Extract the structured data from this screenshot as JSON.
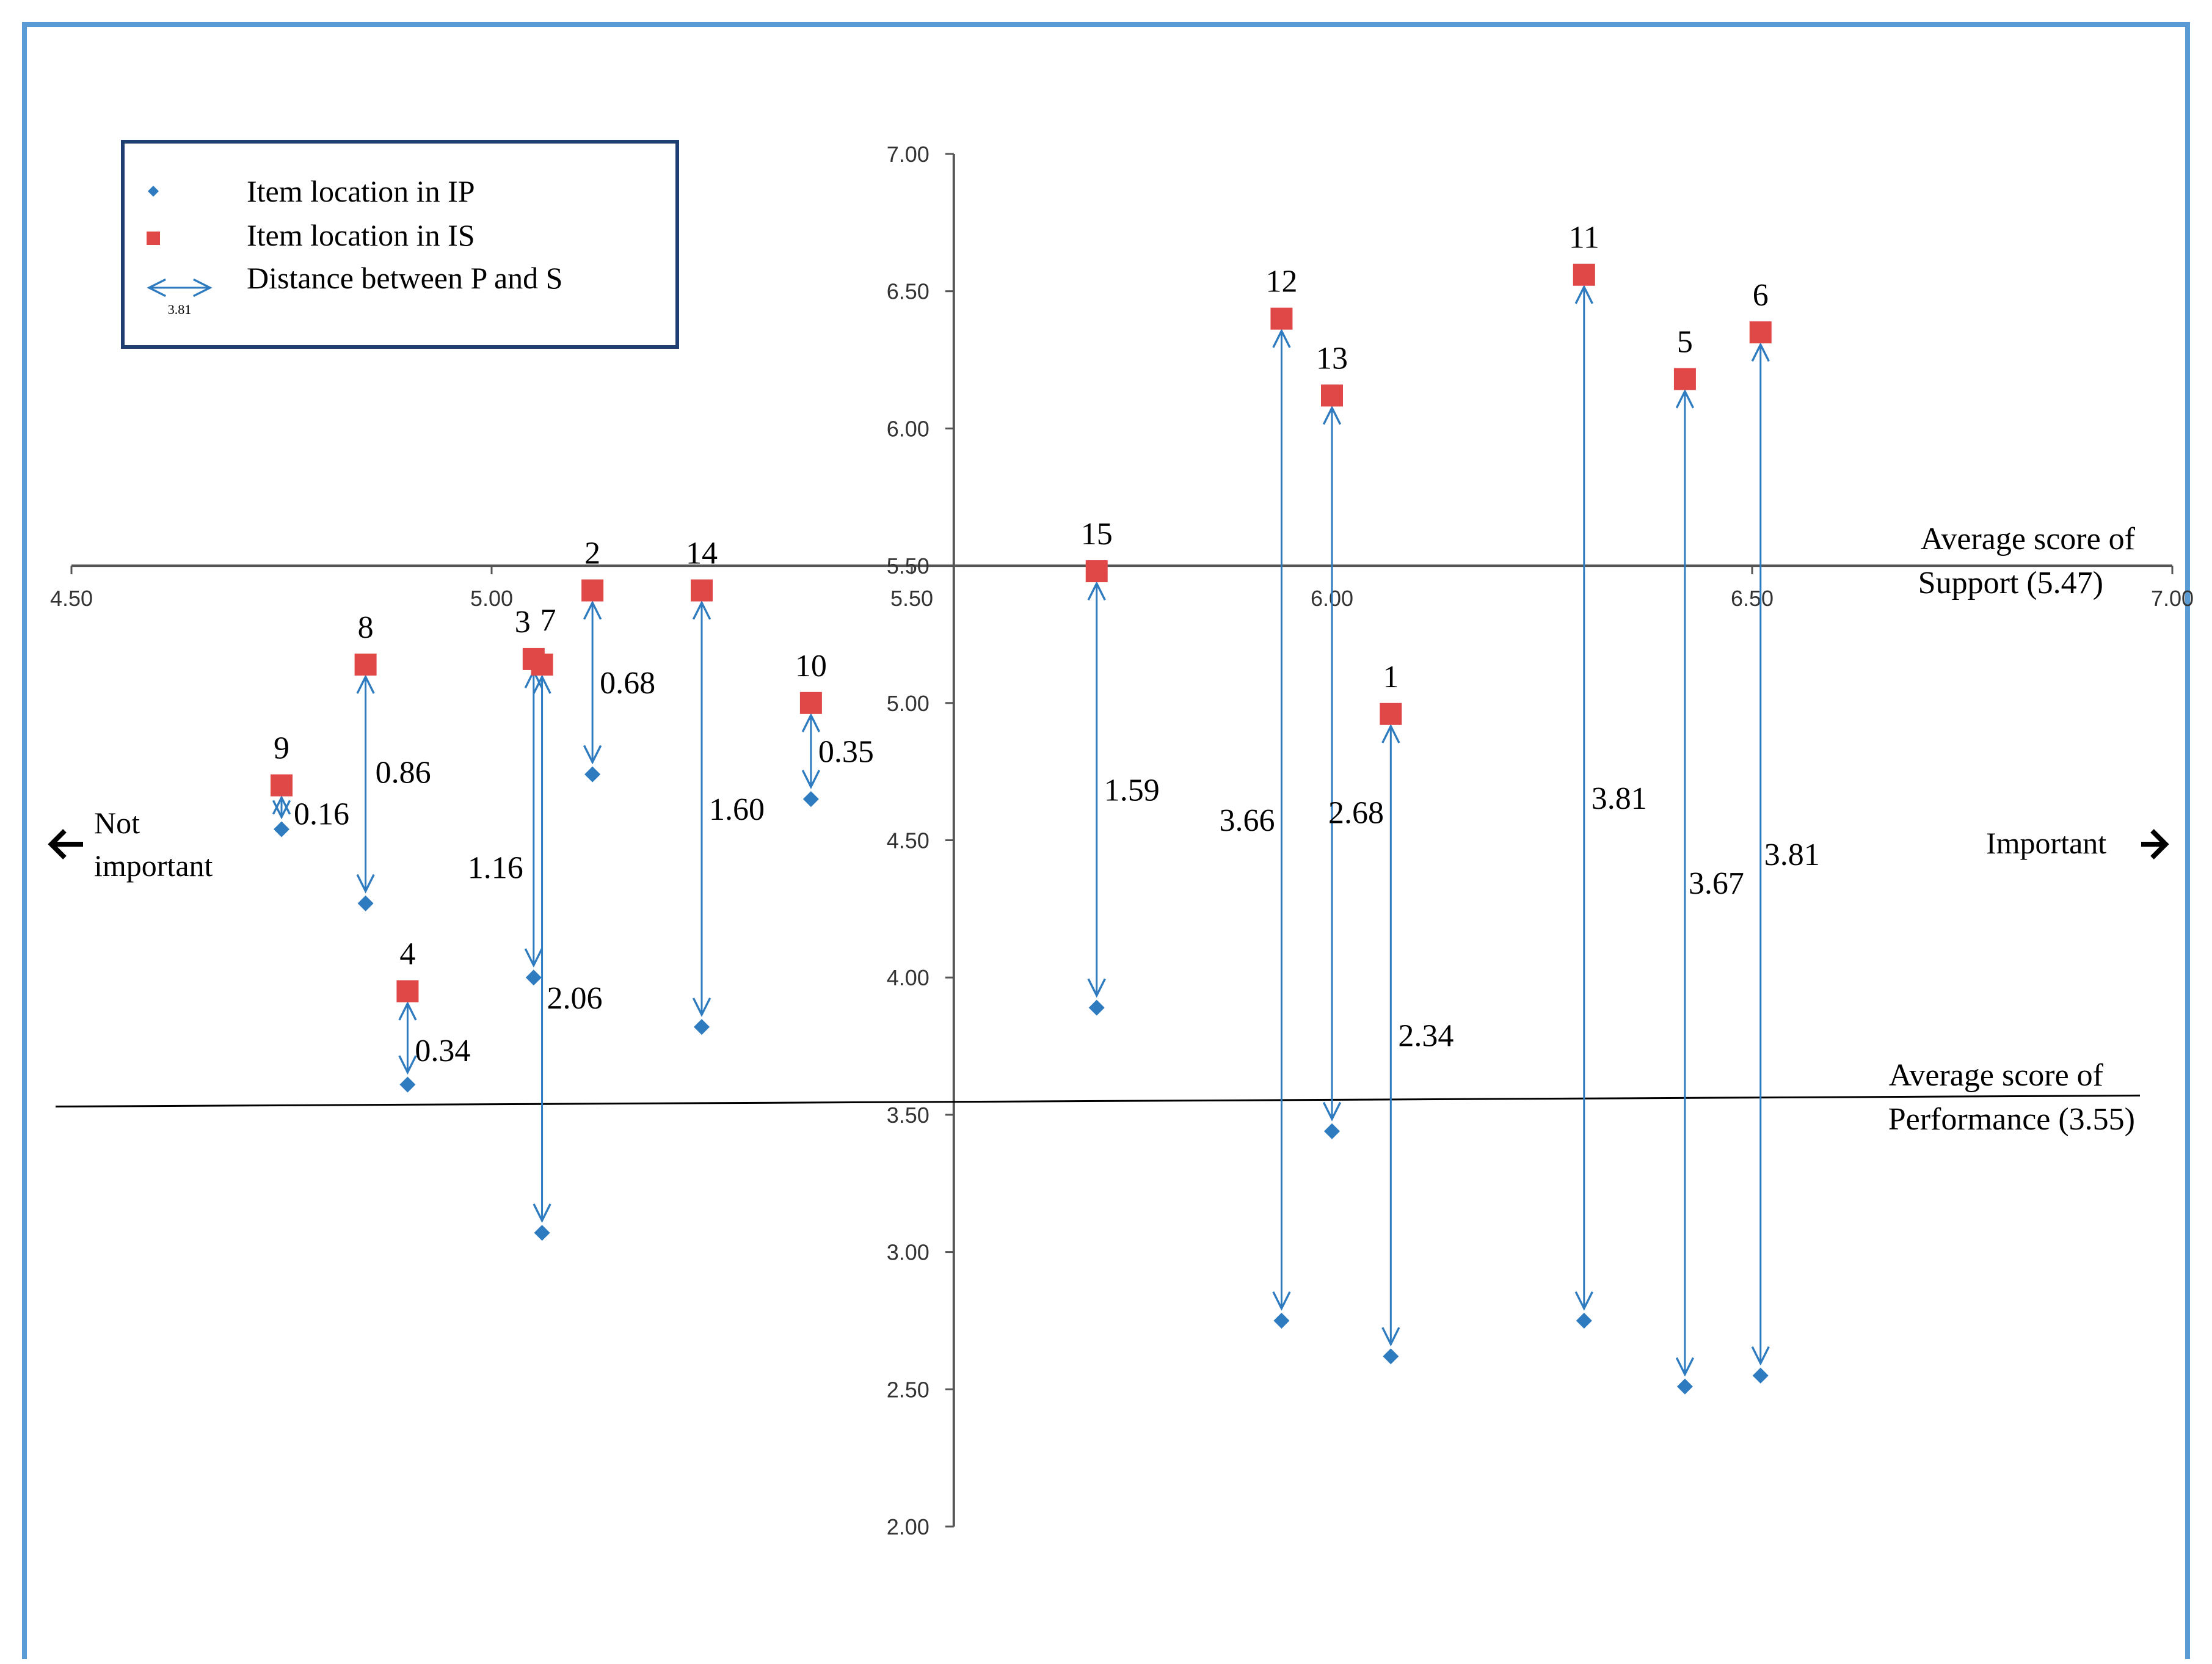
{
  "chart_data": {
    "type": "scatter",
    "x_axis": {
      "range": [
        4.5,
        7.0
      ],
      "ticks": [
        "4.50",
        "5.00",
        "5.50",
        "6.00",
        "6.50",
        "7.00"
      ],
      "crosses_y_at": 5.5
    },
    "y_axis": {
      "range": [
        2.0,
        7.0
      ],
      "ticks": [
        "2.00",
        "2.50",
        "3.00",
        "3.50",
        "4.00",
        "4.50",
        "5.00",
        "5.50",
        "6.00",
        "6.50",
        "7.00"
      ],
      "crosses_x_at": 5.55
    },
    "legend": {
      "placement": "top-left",
      "items": [
        {
          "marker": "diamond",
          "label": "Item location  in  IP"
        },
        {
          "marker": "square",
          "label": "Item location  in  IS"
        },
        {
          "marker": "double-arrow",
          "label": "Distance  between  P and  S",
          "sample_value": "3.81"
        }
      ]
    },
    "series": [
      {
        "name": "Item location in IP",
        "color": "#2e7bbf",
        "marker": "diamond"
      },
      {
        "name": "Item location in IS",
        "color": "#e04848",
        "marker": "square"
      }
    ],
    "items": [
      {
        "id": "1",
        "x": 6.07,
        "performance": 2.62,
        "support": 4.96,
        "gap": "2.34"
      },
      {
        "id": "2",
        "x": 5.12,
        "performance": 4.74,
        "support": 5.41,
        "gap": "0.68"
      },
      {
        "id": "3",
        "x": 5.05,
        "performance": 4.0,
        "support": 5.16,
        "gap": "1.16"
      },
      {
        "id": "4",
        "x": 4.9,
        "performance": 3.61,
        "support": 3.95,
        "gap": "0.34"
      },
      {
        "id": "5",
        "x": 6.42,
        "performance": 2.51,
        "support": 6.18,
        "gap": "3.67"
      },
      {
        "id": "6",
        "x": 6.51,
        "performance": 2.55,
        "support": 6.35,
        "gap": "3.81"
      },
      {
        "id": "7",
        "x": 5.06,
        "performance": 3.07,
        "support": 5.14,
        "gap": "2.06"
      },
      {
        "id": "8",
        "x": 4.85,
        "performance": 4.27,
        "support": 5.14,
        "gap": "0.86"
      },
      {
        "id": "9",
        "x": 4.75,
        "performance": 4.54,
        "support": 4.7,
        "gap": "0.16"
      },
      {
        "id": "10",
        "x": 5.38,
        "performance": 4.65,
        "support": 5.0,
        "gap": "0.35"
      },
      {
        "id": "11",
        "x": 6.3,
        "performance": 2.75,
        "support": 6.56,
        "gap": "3.81"
      },
      {
        "id": "12",
        "x": 5.94,
        "performance": 2.75,
        "support": 6.4,
        "gap": "3.66"
      },
      {
        "id": "13",
        "x": 6.0,
        "performance": 3.44,
        "support": 6.12,
        "gap": "2.68"
      },
      {
        "id": "14",
        "x": 5.25,
        "performance": 3.82,
        "support": 5.41,
        "gap": "1.60"
      },
      {
        "id": "15",
        "x": 5.72,
        "performance": 3.89,
        "support": 5.48,
        "gap": "1.59"
      }
    ],
    "reference_lines": [
      {
        "name": "support-average",
        "value": 5.47,
        "label_line1": "Average  score  of",
        "label_line2": "Support  (5.47)"
      },
      {
        "name": "performance-average",
        "value": 3.55,
        "label_line1": "Average  score  of",
        "label_line2": "Performance  (3.55)"
      }
    ],
    "annotations": {
      "left": [
        "Not",
        "important"
      ],
      "right": "Important"
    }
  }
}
